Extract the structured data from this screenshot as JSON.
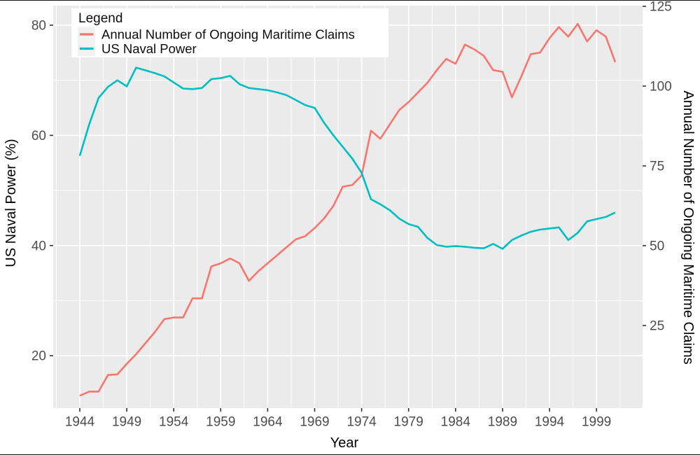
{
  "chart_data": {
    "type": "line",
    "title": "",
    "x": [
      1944,
      1945,
      1946,
      1947,
      1948,
      1949,
      1950,
      1951,
      1952,
      1953,
      1954,
      1955,
      1956,
      1957,
      1958,
      1959,
      1960,
      1961,
      1962,
      1963,
      1964,
      1965,
      1966,
      1967,
      1968,
      1969,
      1970,
      1971,
      1972,
      1973,
      1974,
      1975,
      1976,
      1977,
      1978,
      1979,
      1980,
      1981,
      1982,
      1983,
      1984,
      1985,
      1986,
      1987,
      1988,
      1989,
      1990,
      1991,
      1992,
      1993,
      1994,
      1995,
      1996,
      1997,
      1998,
      1999,
      2000,
      2001
    ],
    "series": [
      {
        "id": "claims",
        "name": "Annual Number of Ongoing Maritime Claims",
        "axis": "right",
        "color": "#F8766D",
        "values": [
          3,
          4.3,
          4.3,
          9.5,
          9.7,
          13,
          16,
          19.5,
          23,
          27,
          27.5,
          27.5,
          33.5,
          33.5,
          43.5,
          44.5,
          46,
          44.5,
          39,
          42,
          44.5,
          47,
          49.5,
          52,
          53,
          55.5,
          58.5,
          62.5,
          68.5,
          69,
          72,
          86,
          83.5,
          88,
          92.5,
          95,
          98,
          101,
          105,
          108.5,
          107,
          113,
          111.5,
          109.5,
          105,
          104.5,
          96.5,
          103,
          110,
          110.5,
          115,
          118.5,
          115.5,
          119.5,
          114,
          117.5,
          115.5,
          107.5
        ]
      },
      {
        "id": "naval-power",
        "name": "US Naval Power",
        "axis": "left",
        "color": "#00BFC4",
        "values": [
          56.3,
          62,
          66.8,
          68.8,
          70,
          68.9,
          72.3,
          71.8,
          71.3,
          70.7,
          69.6,
          68.5,
          68.4,
          68.6,
          70.2,
          70.4,
          70.8,
          69.3,
          68.6,
          68.4,
          68.2,
          67.8,
          67.3,
          66.4,
          65.5,
          65,
          62.3,
          60,
          57.9,
          55.8,
          53.2,
          48.4,
          47.5,
          46.4,
          44.9,
          43.9,
          43.4,
          41.4,
          40.1,
          39.8,
          39.9,
          39.8,
          39.6,
          39.5,
          40.3,
          39.4,
          41,
          41.8,
          42.5,
          42.9,
          43.1,
          43.3,
          41,
          42.3,
          44.4,
          44.8,
          45.2,
          46
        ]
      }
    ],
    "x_axis": {
      "label": "Year",
      "ticks": [
        1944,
        1949,
        1954,
        1959,
        1964,
        1969,
        1974,
        1979,
        1984,
        1989,
        1994,
        1999
      ],
      "minor_ticks": [
        1941.5,
        1946.5,
        1951.5,
        1956.5,
        1961.5,
        1966.5,
        1971.5,
        1976.5,
        1981.5,
        1986.5,
        1991.5,
        1996.5,
        2001.5
      ],
      "range": [
        1941.2,
        2003.9
      ]
    },
    "left_axis": {
      "label": "US Naval Power (%)",
      "ticks": [
        80,
        60,
        40,
        20
      ],
      "minor_ticks": [
        70,
        50,
        30
      ],
      "range": [
        10.5,
        83.5
      ]
    },
    "right_axis": {
      "label": "Annual Number of Ongoing Maritime Claims",
      "ticks": [
        125,
        100,
        75,
        50,
        25
      ],
      "range": [
        0,
        125.2
      ]
    },
    "legend": {
      "title": "Legend",
      "position": "top-left",
      "entries": [
        {
          "id": "claims",
          "label": "Annual Number of Ongoing Maritime Claims",
          "color": "#F8766D"
        },
        {
          "id": "naval-power",
          "label": "US Naval Power",
          "color": "#00BFC4"
        }
      ]
    },
    "grid": true,
    "style": {
      "panel_bg": "#EBEBEB",
      "grid_color": "#FFFFFF",
      "tick_mark_color": "#333333",
      "tick_text_color": "#4D4D4D",
      "axis_title_color": "#000000",
      "legend_bg": "#FFFFFF",
      "legend_key_bg": "#F2F2F2",
      "line_width": 2.6
    }
  }
}
